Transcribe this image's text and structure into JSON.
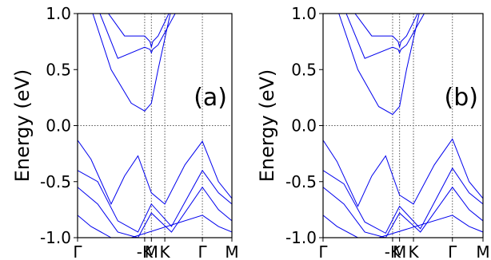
{
  "chart_data": [
    {
      "type": "line",
      "panel_label": "(a)",
      "ylabel": "Energy (eV)",
      "ylim": [
        -1.0,
        1.0
      ],
      "yticks": [
        1.0,
        0.5,
        0.0,
        -0.5,
        -1.0
      ],
      "ytick_labels": [
        "1.0",
        "0.5",
        "0.0",
        "-0.5",
        "-1.0"
      ],
      "xticks": [
        0,
        1,
        1.1,
        1.3,
        1.86,
        2.3
      ],
      "xtick_labels": [
        "Γ",
        "-K",
        "M",
        "K",
        "Γ",
        "M"
      ],
      "xlim": [
        0,
        2.3
      ],
      "vlines_at": [
        1,
        1.1,
        1.3,
        1.86
      ],
      "hline_at": 0,
      "color": "#0000ee",
      "series": [
        {
          "x": [
            0.2,
            0.5,
            0.8,
            1.0,
            1.1,
            1.2,
            1.4
          ],
          "y": [
            1.05,
            0.5,
            0.2,
            0.13,
            0.2,
            0.5,
            1.05
          ]
        },
        {
          "x": [
            0.3,
            0.6,
            1.0,
            1.08,
            1.1,
            1.12,
            1.2,
            1.5
          ],
          "y": [
            1.05,
            0.6,
            0.7,
            0.68,
            0.65,
            0.68,
            0.72,
            1.05
          ]
        },
        {
          "x": [
            0.4,
            0.7,
            1.0,
            1.08,
            1.1,
            1.12,
            1.2,
            1.4
          ],
          "y": [
            1.05,
            0.8,
            0.8,
            0.75,
            0.7,
            0.75,
            0.8,
            1.05
          ]
        },
        {
          "x": [
            0,
            0.2,
            0.5,
            0.7,
            0.9,
            1.1,
            1.3,
            1.6,
            1.86,
            2.1,
            2.3
          ],
          "y": [
            -0.13,
            -0.3,
            -0.7,
            -0.45,
            -0.27,
            -0.6,
            -0.7,
            -0.35,
            -0.14,
            -0.5,
            -0.65
          ]
        },
        {
          "x": [
            0,
            0.3,
            0.6,
            0.9,
            1.1,
            1.4,
            1.86,
            2.1,
            2.3
          ],
          "y": [
            -0.4,
            -0.5,
            -0.85,
            -0.95,
            -0.7,
            -0.9,
            -0.4,
            -0.6,
            -0.7
          ]
        },
        {
          "x": [
            0,
            0.3,
            0.6,
            0.9,
            1.1,
            1.4,
            1.86,
            2.1,
            2.3
          ],
          "y": [
            -0.55,
            -0.7,
            -0.95,
            -1.0,
            -0.78,
            -0.95,
            -0.55,
            -0.75,
            -0.85
          ]
        },
        {
          "x": [
            0,
            0.2,
            0.5,
            0.8,
            1.86,
            2.1,
            2.3
          ],
          "y": [
            -0.8,
            -0.9,
            -1.0,
            -1.0,
            -0.8,
            -0.9,
            -0.95
          ]
        }
      ]
    },
    {
      "type": "line",
      "panel_label": "(b)",
      "ylabel": "Energy (eV)",
      "ylim": [
        -1.0,
        1.0
      ],
      "yticks": [
        1.0,
        0.5,
        0.0,
        -0.5,
        -1.0
      ],
      "ytick_labels": [
        "1.0",
        "0.5",
        "0.0",
        "-0.5",
        "-1.0"
      ],
      "xticks": [
        0,
        1,
        1.1,
        1.3,
        1.86,
        2.3
      ],
      "xtick_labels": [
        "Γ",
        "-K",
        "M",
        "K",
        "Γ",
        "M"
      ],
      "xlim": [
        0,
        2.3
      ],
      "vlines_at": [
        1,
        1.1,
        1.3,
        1.86
      ],
      "hline_at": 0,
      "color": "#0000ee",
      "series": [
        {
          "x": [
            0.2,
            0.5,
            0.8,
            1.0,
            1.1,
            1.2,
            1.4
          ],
          "y": [
            1.05,
            0.5,
            0.17,
            0.1,
            0.17,
            0.5,
            1.05
          ]
        },
        {
          "x": [
            0.3,
            0.6,
            1.0,
            1.08,
            1.1,
            1.12,
            1.2,
            1.5
          ],
          "y": [
            1.05,
            0.6,
            0.7,
            0.68,
            0.65,
            0.68,
            0.72,
            1.05
          ]
        },
        {
          "x": [
            0.4,
            0.7,
            1.0,
            1.08,
            1.1,
            1.12,
            1.2,
            1.4
          ],
          "y": [
            1.05,
            0.8,
            0.8,
            0.75,
            0.7,
            0.75,
            0.8,
            1.05
          ]
        },
        {
          "x": [
            0,
            0.2,
            0.5,
            0.7,
            0.9,
            1.1,
            1.3,
            1.6,
            1.86,
            2.1,
            2.3
          ],
          "y": [
            -0.13,
            -0.32,
            -0.72,
            -0.45,
            -0.27,
            -0.62,
            -0.7,
            -0.35,
            -0.12,
            -0.5,
            -0.65
          ]
        },
        {
          "x": [
            0,
            0.3,
            0.6,
            0.9,
            1.1,
            1.4,
            1.86,
            2.1,
            2.3
          ],
          "y": [
            -0.4,
            -0.52,
            -0.86,
            -0.96,
            -0.72,
            -0.92,
            -0.38,
            -0.6,
            -0.7
          ]
        },
        {
          "x": [
            0,
            0.3,
            0.6,
            0.9,
            1.1,
            1.4,
            1.86,
            2.1,
            2.3
          ],
          "y": [
            -0.55,
            -0.7,
            -0.95,
            -1.0,
            -0.78,
            -0.95,
            -0.55,
            -0.75,
            -0.85
          ]
        },
        {
          "x": [
            0,
            0.2,
            0.5,
            0.8,
            1.86,
            2.1,
            2.3
          ],
          "y": [
            -0.8,
            -0.9,
            -1.0,
            -1.0,
            -0.8,
            -0.9,
            -0.95
          ]
        }
      ]
    }
  ]
}
